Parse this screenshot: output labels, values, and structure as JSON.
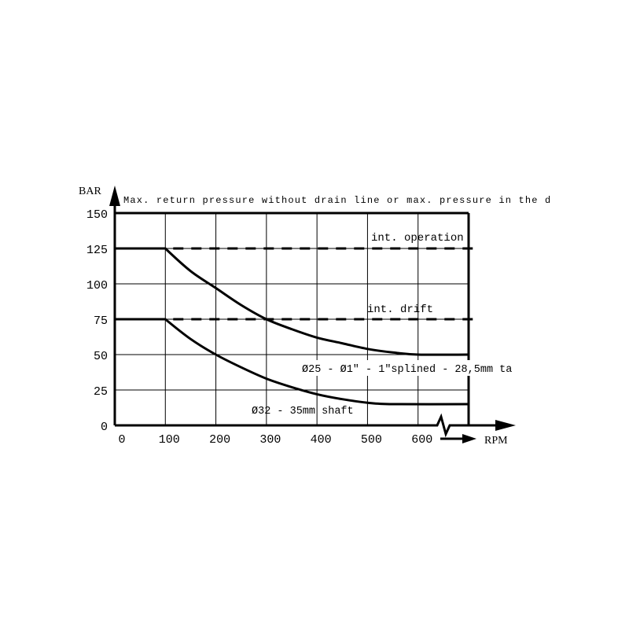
{
  "chart_data": {
    "type": "line",
    "title": "Max. return pressure without drain line or max. pressure in the dra",
    "ylabel": "BAR",
    "xlabel": "RPM",
    "xlim": [
      0,
      700
    ],
    "ylim": [
      0,
      150
    ],
    "grid": true,
    "x_ticks": [
      0,
      100,
      200,
      300,
      400,
      500,
      600
    ],
    "x_tick_labels": [
      "0",
      "100",
      "200",
      "300",
      "400",
      "500",
      "600"
    ],
    "y_ticks": [
      0,
      25,
      50,
      75,
      100,
      125,
      150
    ],
    "y_tick_labels": [
      "0",
      "25",
      "50",
      "75",
      "100",
      "125",
      "150"
    ],
    "series": [
      {
        "name": "Ø25 - Ø1\" - 1\"splined - 28,5mm ta",
        "style": "solid",
        "x": [
          0,
          100,
          150,
          200,
          250,
          300,
          350,
          400,
          450,
          500,
          550,
          600,
          700
        ],
        "y": [
          125,
          125,
          109,
          97,
          85,
          75,
          68,
          62,
          58,
          54,
          51.5,
          50,
          50
        ]
      },
      {
        "name": "Ø32 - 35mm shaft",
        "style": "solid",
        "x": [
          0,
          100,
          150,
          200,
          250,
          300,
          350,
          400,
          450,
          500,
          550,
          700
        ],
        "y": [
          75,
          75,
          61,
          50,
          41,
          33,
          27,
          22,
          18.5,
          16,
          15,
          15
        ]
      },
      {
        "name": "int. operation",
        "style": "dashed",
        "x": [
          100,
          700
        ],
        "y": [
          125,
          125
        ]
      },
      {
        "name": "int. drift",
        "style": "dashed",
        "x": [
          100,
          700
        ],
        "y": [
          75,
          75
        ]
      }
    ],
    "annotations": {
      "int_operation": "int. operation",
      "int_drift": "int. drift",
      "upper_curve": "Ø25 - Ø1\" - 1\"splined - 28,5mm ta",
      "lower_curve": "Ø32 - 35mm shaft"
    },
    "axis_break": true,
    "colors": {
      "ink": "#000000",
      "background": "#ffffff"
    }
  }
}
